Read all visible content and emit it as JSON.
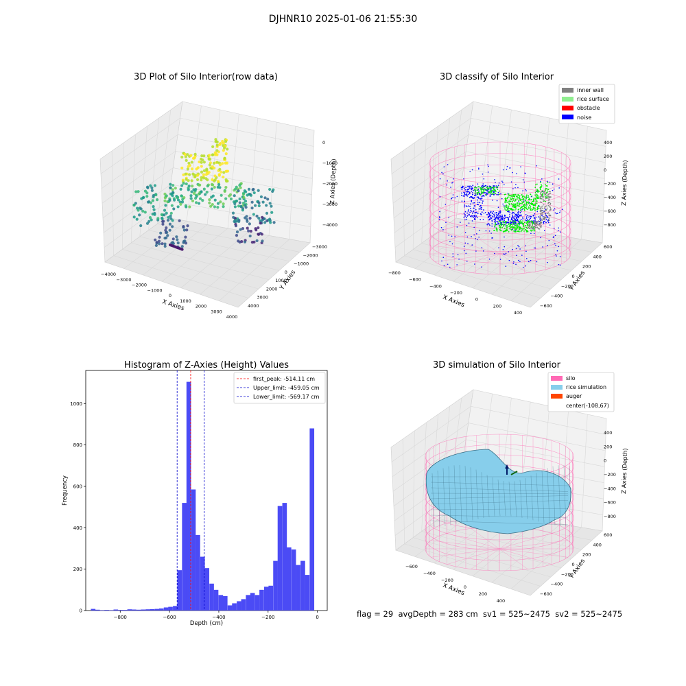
{
  "suptitle": "DJHNR10 2025-01-06 21:55:30",
  "colors": {
    "inner_wall": "#808080",
    "rice_surface": "#90ee90",
    "obstacle": "#ff0000",
    "noise": "#0000ff",
    "silo": "#ff69b4",
    "rice_sim": "#87ceeb",
    "auger": "#ff4500",
    "hist_bar": "#4b4bf5",
    "first_peak_line": "#ff0000",
    "limit_line": "#0000cc"
  },
  "chart_data": [
    {
      "type": "scatter",
      "title": "3D Plot of Silo Interior(row data)",
      "xlabel": "X Axies",
      "ylabel": "Y Axies",
      "zlabel": "Z Axies (Depth)",
      "x_ticks": [
        "−4000",
        "−3000",
        "−2000",
        "−1000",
        "0",
        "1000",
        "2000",
        "3000",
        "4000"
      ],
      "y_ticks": [
        "−3000",
        "−2000",
        "−1000",
        "0",
        "1000",
        "2000",
        "3000",
        "4000"
      ],
      "z_ticks": [
        "0",
        "−1000",
        "−2000",
        "−3000",
        "−4000"
      ],
      "colormap": "viridis",
      "grid": true
    },
    {
      "type": "scatter",
      "title": "3D classify of Silo Interior",
      "xlabel": "X Axies",
      "ylabel": "Y Axies",
      "zlabel": "Z Axies (Depth)",
      "x_ticks": [
        "−800",
        "−600",
        "−400",
        "−200",
        "0",
        "200",
        "400"
      ],
      "y_ticks": [
        "−600",
        "−400",
        "−200",
        "0",
        "200",
        "400",
        "600"
      ],
      "z_ticks": [
        "400",
        "200",
        "0",
        "−200",
        "−400",
        "−600",
        "−800"
      ],
      "legend": [
        "inner wall",
        "rice surface",
        "obstacle",
        "noise"
      ],
      "legend_position": "top-right",
      "grid": true
    },
    {
      "type": "bar",
      "title": "Histogram of Z-Axies (Height) Values",
      "xlabel": "Depth (cm)",
      "ylabel": "Frequency",
      "xlim": [
        -940,
        40
      ],
      "ylim": [
        0,
        1160
      ],
      "x_ticks": [
        -800,
        -600,
        -400,
        -200,
        0
      ],
      "y_ticks": [
        0,
        200,
        400,
        600,
        800,
        1000
      ],
      "bin_width": 18.5,
      "bins": [
        {
          "x": -910,
          "value": 8
        },
        {
          "x": -892,
          "value": 4
        },
        {
          "x": -873,
          "value": 2
        },
        {
          "x": -855,
          "value": 3
        },
        {
          "x": -836,
          "value": 2
        },
        {
          "x": -818,
          "value": 5
        },
        {
          "x": -799,
          "value": 3
        },
        {
          "x": -781,
          "value": 3
        },
        {
          "x": -762,
          "value": 6
        },
        {
          "x": -744,
          "value": 5
        },
        {
          "x": -725,
          "value": 4
        },
        {
          "x": -707,
          "value": 5
        },
        {
          "x": -688,
          "value": 6
        },
        {
          "x": -670,
          "value": 7
        },
        {
          "x": -651,
          "value": 8
        },
        {
          "x": -633,
          "value": 10
        },
        {
          "x": -614,
          "value": 15
        },
        {
          "x": -596,
          "value": 18
        },
        {
          "x": -577,
          "value": 22
        },
        {
          "x": -559,
          "value": 195
        },
        {
          "x": -540,
          "value": 520
        },
        {
          "x": -522,
          "value": 1105
        },
        {
          "x": -503,
          "value": 585
        },
        {
          "x": -485,
          "value": 365
        },
        {
          "x": -466,
          "value": 260
        },
        {
          "x": -448,
          "value": 205
        },
        {
          "x": -429,
          "value": 130
        },
        {
          "x": -411,
          "value": 100
        },
        {
          "x": -392,
          "value": 75
        },
        {
          "x": -374,
          "value": 70
        },
        {
          "x": -355,
          "value": 25
        },
        {
          "x": -337,
          "value": 35
        },
        {
          "x": -318,
          "value": 45
        },
        {
          "x": -300,
          "value": 55
        },
        {
          "x": -281,
          "value": 75
        },
        {
          "x": -263,
          "value": 85
        },
        {
          "x": -244,
          "value": 75
        },
        {
          "x": -226,
          "value": 100
        },
        {
          "x": -207,
          "value": 115
        },
        {
          "x": -189,
          "value": 120
        },
        {
          "x": -170,
          "value": 240
        },
        {
          "x": -152,
          "value": 505
        },
        {
          "x": -133,
          "value": 520
        },
        {
          "x": -115,
          "value": 305
        },
        {
          "x": -96,
          "value": 295
        },
        {
          "x": -78,
          "value": 220
        },
        {
          "x": -59,
          "value": 240
        },
        {
          "x": -41,
          "value": 172
        },
        {
          "x": -22,
          "value": 880
        }
      ],
      "vlines": [
        {
          "x": -514.11,
          "label": "first_peak: -514.11 cm",
          "color": "#ff0000"
        },
        {
          "x": -459.05,
          "label": "Upper_limit: -459.05 cm",
          "color": "#0000cc"
        },
        {
          "x": -569.17,
          "label": "Lower_limit: -569.17 cm",
          "color": "#0000cc"
        }
      ],
      "legend_position": "top-right"
    },
    {
      "type": "area",
      "title": "3D simulation of Silo Interior",
      "xlabel": "X Axies",
      "ylabel": "Y Axies",
      "zlabel": "Z Axies (Depth)",
      "x_ticks": [
        "−600",
        "−400",
        "−200",
        "0",
        "200",
        "400"
      ],
      "y_ticks": [
        "−600",
        "−400",
        "−200",
        "0",
        "200",
        "400",
        "600"
      ],
      "z_ticks": [
        "400",
        "200",
        "0",
        "−200",
        "−400",
        "−600",
        "−800"
      ],
      "legend": [
        "silo",
        "rice simulation",
        "auger",
        "center(-108,67)"
      ],
      "legend_position": "top-right",
      "grid": true
    }
  ],
  "info_line": "flag = 29  avgDepth = 283 cm  sv1 = 525~2475  sv2 = 525~2475"
}
